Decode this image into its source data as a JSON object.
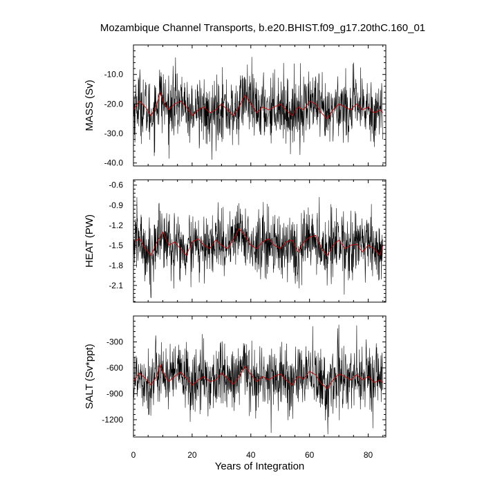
{
  "figure": {
    "title": "Mozambique Channel Transports, b.e20.BHIST.f09_g17.20thC.160_01",
    "xlabel": "Years of Integration"
  },
  "chart_data": [
    {
      "type": "line",
      "ylabel": "MASS (Sv)",
      "xlim": [
        0,
        86
      ],
      "ylim": [
        -41,
        0
      ],
      "xticks": [
        "0",
        "20",
        "40",
        "60",
        "80"
      ],
      "yticks": [
        "-10.0",
        "-20.0",
        "-30.0",
        "-40.0"
      ],
      "ytick_values": [
        -10,
        -20,
        -30,
        -40
      ],
      "series": [
        {
          "kind": "monthly",
          "color": "#000000",
          "mean": -21.0,
          "std": 5.5,
          "min": -40.0,
          "max": -1.5
        },
        {
          "kind": "smoothed",
          "color": "#cc0000",
          "x": [
            0,
            2,
            4,
            6,
            8,
            9,
            10,
            12,
            14,
            16,
            18,
            20,
            22,
            24,
            26,
            28,
            30,
            32,
            34,
            36,
            38,
            40,
            42,
            44,
            46,
            48,
            50,
            52,
            54,
            56,
            58,
            60,
            62,
            64,
            66,
            68,
            70,
            72,
            74,
            76,
            78,
            80,
            82,
            84,
            85
          ],
          "values": [
            -22,
            -19,
            -21,
            -24,
            -20,
            -16,
            -19,
            -22,
            -20,
            -19,
            -21,
            -24,
            -22,
            -21,
            -23,
            -22,
            -20,
            -22,
            -24,
            -21,
            -17,
            -20,
            -23,
            -21,
            -22,
            -21,
            -20,
            -22,
            -24,
            -21,
            -22,
            -19,
            -20,
            -23,
            -25,
            -22,
            -20,
            -21,
            -22,
            -20,
            -22,
            -21,
            -23,
            -22,
            -23
          ]
        }
      ]
    },
    {
      "type": "line",
      "ylabel": "HEAT (PW)",
      "xlim": [
        0,
        86
      ],
      "ylim": [
        -2.35,
        -0.52
      ],
      "xticks": [
        "0",
        "20",
        "40",
        "60",
        "80"
      ],
      "yticks": [
        "-0.6",
        "-0.9",
        "-1.2",
        "-1.5",
        "-1.8",
        "-2.1"
      ],
      "ytick_values": [
        -0.6,
        -0.9,
        -1.2,
        -1.5,
        -1.8,
        -2.1
      ],
      "series": [
        {
          "kind": "monthly",
          "color": "#000000",
          "mean": -1.5,
          "std": 0.25,
          "min": -2.3,
          "max": -0.55
        },
        {
          "kind": "smoothed",
          "color": "#cc0000",
          "x": [
            0,
            2,
            4,
            6,
            8,
            10,
            12,
            14,
            16,
            18,
            20,
            22,
            24,
            26,
            28,
            30,
            32,
            34,
            36,
            38,
            40,
            42,
            44,
            46,
            48,
            50,
            52,
            54,
            56,
            58,
            60,
            62,
            64,
            66,
            68,
            70,
            72,
            74,
            76,
            78,
            80,
            82,
            84,
            85
          ],
          "values": [
            -1.45,
            -1.4,
            -1.55,
            -1.65,
            -1.45,
            -1.3,
            -1.5,
            -1.45,
            -1.55,
            -1.65,
            -1.45,
            -1.4,
            -1.5,
            -1.55,
            -1.42,
            -1.5,
            -1.55,
            -1.42,
            -1.25,
            -1.35,
            -1.5,
            -1.55,
            -1.45,
            -1.4,
            -1.5,
            -1.55,
            -1.45,
            -1.42,
            -1.6,
            -1.45,
            -1.38,
            -1.35,
            -1.55,
            -1.65,
            -1.5,
            -1.42,
            -1.55,
            -1.5,
            -1.48,
            -1.6,
            -1.5,
            -1.55,
            -1.65,
            -1.5
          ]
        }
      ]
    },
    {
      "type": "line",
      "ylabel": "SALT (Sv*ppt)",
      "xlim": [
        0,
        86
      ],
      "ylim": [
        -1400,
        0
      ],
      "xticks": [
        "0",
        "20",
        "40",
        "60",
        "80"
      ],
      "yticks": [
        "-300",
        "-600",
        "-900",
        "-1200"
      ],
      "ytick_values": [
        -300,
        -600,
        -900,
        -1200
      ],
      "series": [
        {
          "kind": "monthly",
          "color": "#000000",
          "mean": -740,
          "std": 190,
          "min": -1380,
          "max": -80
        },
        {
          "kind": "smoothed",
          "color": "#cc0000",
          "x": [
            0,
            2,
            4,
            6,
            8,
            9,
            10,
            12,
            14,
            16,
            18,
            20,
            22,
            24,
            26,
            28,
            30,
            32,
            34,
            36,
            38,
            40,
            42,
            44,
            46,
            48,
            50,
            52,
            54,
            56,
            58,
            60,
            62,
            64,
            66,
            68,
            70,
            72,
            74,
            76,
            78,
            80,
            82,
            84,
            85
          ],
          "values": [
            -760,
            -660,
            -720,
            -800,
            -690,
            -560,
            -650,
            -760,
            -700,
            -650,
            -720,
            -800,
            -740,
            -700,
            -760,
            -740,
            -660,
            -720,
            -790,
            -700,
            -580,
            -680,
            -760,
            -700,
            -740,
            -700,
            -670,
            -740,
            -800,
            -700,
            -730,
            -640,
            -680,
            -780,
            -840,
            -740,
            -670,
            -700,
            -740,
            -680,
            -740,
            -700,
            -770,
            -740,
            -770
          ]
        }
      ]
    }
  ]
}
